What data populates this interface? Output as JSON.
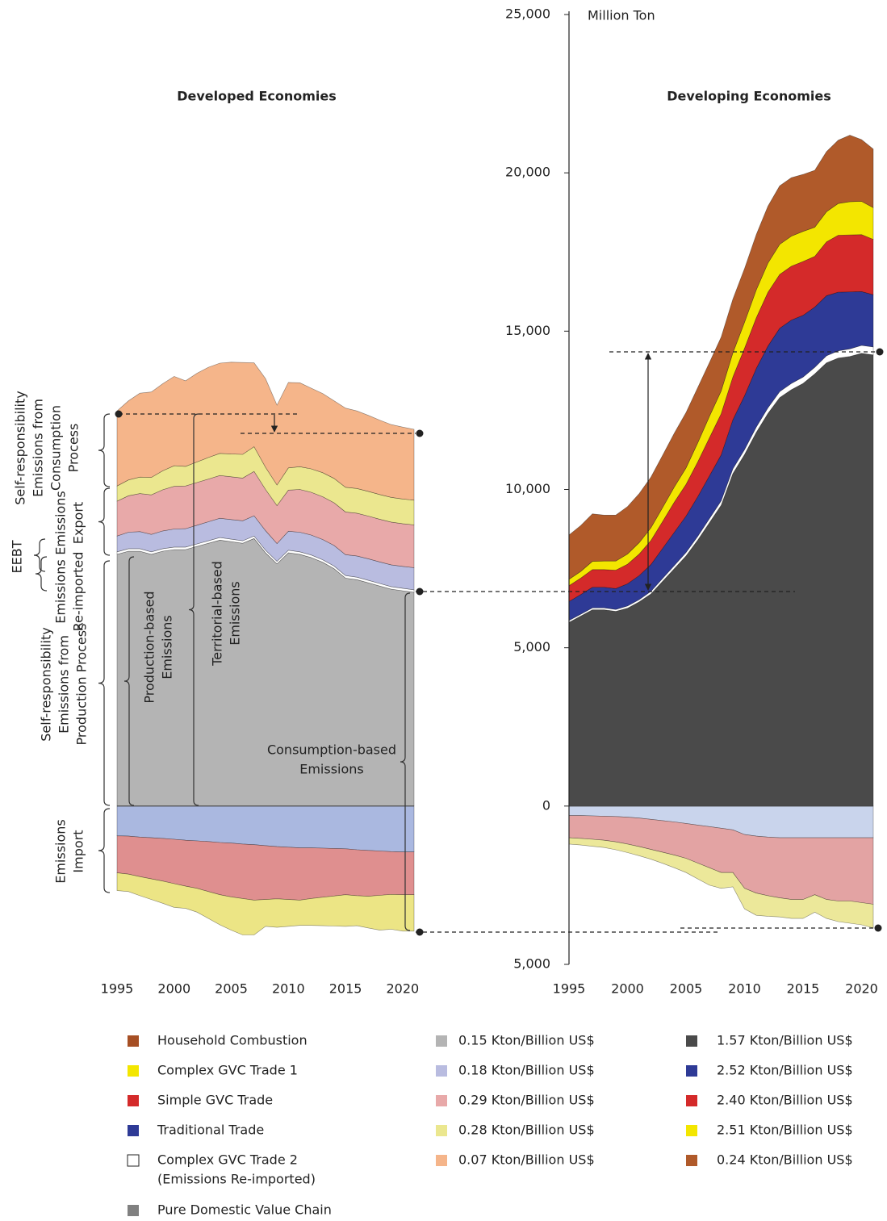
{
  "chart_data": [
    {
      "type": "area",
      "title": "Developed Economies",
      "x": [
        1995,
        1996,
        1997,
        1998,
        1999,
        2000,
        2001,
        2002,
        2003,
        2004,
        2005,
        2006,
        2007,
        2008,
        2009,
        2010,
        2011,
        2012,
        2013,
        2014,
        2015,
        2016,
        2017,
        2018,
        2019,
        2020,
        2021
      ],
      "xlim": [
        1995,
        2021
      ],
      "xticks": [
        1995,
        2000,
        2005,
        2010,
        2015,
        2020
      ],
      "ylim": [
        -5000,
        25000
      ],
      "series": [
        {
          "name": "0.15 Kton/Billion US$",
          "color": "#b4b4b4",
          "values": [
            7950,
            8050,
            8050,
            7950,
            8050,
            8100,
            8100,
            8200,
            8300,
            8400,
            8350,
            8300,
            8450,
            8000,
            7650,
            8000,
            7950,
            7850,
            7700,
            7500,
            7200,
            7150,
            7050,
            6950,
            6850,
            6800,
            6750
          ]
        },
        {
          "color": "#ffffff",
          "values": [
            80,
            80,
            80,
            80,
            80,
            80,
            80,
            80,
            80,
            80,
            80,
            80,
            80,
            80,
            80,
            80,
            80,
            80,
            80,
            80,
            80,
            80,
            80,
            80,
            80,
            80,
            80
          ]
        },
        {
          "name": "0.18 Kton/Billion US$",
          "color": "#b9bce0",
          "values": [
            500,
            520,
            540,
            550,
            560,
            570,
            580,
            590,
            600,
            610,
            620,
            630,
            640,
            620,
            560,
            600,
            620,
            630,
            640,
            650,
            660,
            670,
            680,
            680,
            690,
            690,
            700
          ]
        },
        {
          "name": "0.29 Kton/Billion US$",
          "color": "#e8a9a9",
          "values": [
            1100,
            1150,
            1200,
            1250,
            1300,
            1350,
            1350,
            1350,
            1350,
            1350,
            1350,
            1350,
            1400,
            1300,
            1200,
            1300,
            1350,
            1350,
            1350,
            1350,
            1350,
            1350,
            1350,
            1350,
            1350,
            1350,
            1350
          ]
        },
        {
          "name": "0.28 Kton/Billion US$",
          "color": "#ebe78f",
          "values": [
            480,
            500,
            520,
            550,
            600,
            650,
            620,
            650,
            680,
            700,
            720,
            750,
            780,
            700,
            650,
            700,
            720,
            740,
            760,
            770,
            780,
            780,
            780,
            780,
            780,
            780,
            780
          ]
        },
        {
          "name": "0.07 Kton/Billion US$",
          "color": "#f5b58a",
          "values": [
            2370,
            2500,
            2650,
            2700,
            2750,
            2820,
            2700,
            2800,
            2850,
            2850,
            2900,
            2900,
            2650,
            2800,
            2520,
            2700,
            2650,
            2550,
            2500,
            2450,
            2500,
            2450,
            2400,
            2350,
            2300,
            2270,
            2240
          ]
        }
      ],
      "import_series": [
        {
          "color": "#aab8e0",
          "values": [
            -940,
            -950,
            -980,
            -1000,
            -1020,
            -1050,
            -1080,
            -1100,
            -1120,
            -1150,
            -1170,
            -1200,
            -1220,
            -1250,
            -1280,
            -1300,
            -1320,
            -1320,
            -1330,
            -1340,
            -1350,
            -1380,
            -1400,
            -1420,
            -1440,
            -1450,
            -1450
          ]
        },
        {
          "color": "#df8f8f",
          "values": [
            -1170,
            -1200,
            -1250,
            -1300,
            -1350,
            -1400,
            -1450,
            -1500,
            -1580,
            -1650,
            -1700,
            -1720,
            -1750,
            -1700,
            -1650,
            -1650,
            -1650,
            -1600,
            -1550,
            -1500,
            -1450,
            -1450,
            -1450,
            -1400,
            -1350,
            -1350,
            -1350
          ]
        },
        {
          "color": "#ece585",
          "values": [
            -560,
            -550,
            -600,
            -650,
            -700,
            -750,
            -700,
            -750,
            -850,
            -950,
            -1050,
            -1150,
            -1100,
            -850,
            -900,
            -850,
            -800,
            -850,
            -900,
            -950,
            -1000,
            -950,
            -1000,
            -1100,
            -1100,
            -1150,
            -1150
          ]
        }
      ]
    },
    {
      "type": "area",
      "title": "Developing Economies",
      "y_label": "Million Ton",
      "x": [
        1995,
        1996,
        1997,
        1998,
        1999,
        2000,
        2001,
        2002,
        2003,
        2004,
        2005,
        2006,
        2007,
        2008,
        2009,
        2010,
        2011,
        2012,
        2013,
        2014,
        2015,
        2016,
        2017,
        2018,
        2019,
        2020,
        2021
      ],
      "xlim": [
        1995,
        2021
      ],
      "xticks": [
        1995,
        2000,
        2005,
        2010,
        2015,
        2020
      ],
      "ylim": [
        -5000,
        25000
      ],
      "yticks": [
        {
          "value": 25000,
          "label": "25,000"
        },
        {
          "value": 20000,
          "label": "20,000"
        },
        {
          "value": 15000,
          "label": "15,000"
        },
        {
          "value": 10000,
          "label": "10,000"
        },
        {
          "value": 5000,
          "label": "5,000"
        },
        0,
        {
          "value": -5000,
          "label": "5,000"
        }
      ],
      "series": [
        {
          "name": "1.57 Kton/Billion US$",
          "color": "#4a4a4a",
          "values": [
            5800,
            6000,
            6200,
            6200,
            6150,
            6250,
            6450,
            6700,
            7100,
            7500,
            7900,
            8400,
            8950,
            9500,
            10500,
            11100,
            11800,
            12400,
            12900,
            13150,
            13350,
            13650,
            14000,
            14150,
            14200,
            14300,
            14250
          ]
        },
        {
          "color": "#ffffff",
          "values": [
            60,
            60,
            60,
            60,
            60,
            70,
            70,
            80,
            90,
            100,
            110,
            120,
            130,
            140,
            150,
            160,
            170,
            180,
            190,
            200,
            200,
            210,
            220,
            230,
            240,
            250,
            250
          ]
        },
        {
          "name": "2.52 Kton/Billion US$",
          "color": "#2e3a96",
          "values": [
            600,
            620,
            650,
            650,
            660,
            700,
            760,
            850,
            950,
            1050,
            1150,
            1250,
            1350,
            1450,
            1550,
            1700,
            1850,
            1950,
            2000,
            2000,
            1950,
            1900,
            1900,
            1850,
            1800,
            1700,
            1650
          ]
        },
        {
          "name": "2.40 Kton/Billion US$",
          "color": "#d42a2a",
          "values": [
            500,
            520,
            560,
            560,
            580,
            620,
            680,
            760,
            850,
            950,
            1000,
            1100,
            1200,
            1300,
            1350,
            1500,
            1600,
            1700,
            1700,
            1700,
            1700,
            1600,
            1700,
            1800,
            1800,
            1800,
            1750
          ]
        },
        {
          "name": "2.51 Kton/Billion US$",
          "color": "#f3e600",
          "values": [
            200,
            210,
            260,
            270,
            290,
            320,
            360,
            400,
            440,
            480,
            520,
            600,
            680,
            720,
            760,
            820,
            880,
            920,
            950,
            950,
            950,
            920,
            950,
            1000,
            1050,
            1050,
            1000
          ]
        },
        {
          "name": "0.24 Kton/Billion US$",
          "color": "#b05a2a",
          "values": [
            1400,
            1450,
            1500,
            1450,
            1450,
            1500,
            1550,
            1600,
            1650,
            1700,
            1750,
            1750,
            1700,
            1700,
            1700,
            1700,
            1750,
            1800,
            1850,
            1850,
            1800,
            1800,
            1900,
            2000,
            2100,
            1950,
            1850
          ]
        }
      ],
      "import_series": [
        {
          "color": "#c9d4ec",
          "values": [
            -300,
            -300,
            -310,
            -320,
            -330,
            -350,
            -380,
            -420,
            -460,
            -500,
            -550,
            -600,
            -650,
            -700,
            -750,
            -900,
            -950,
            -980,
            -1000,
            -1000,
            -1000,
            -1000,
            -1000,
            -1000,
            -1000,
            -1000,
            -1000
          ]
        },
        {
          "color": "#e3a3a3",
          "values": [
            -700,
            -720,
            -740,
            -760,
            -800,
            -850,
            -900,
            -950,
            -1000,
            -1050,
            -1100,
            -1200,
            -1300,
            -1400,
            -1350,
            -1700,
            -1800,
            -1850,
            -1900,
            -1950,
            -1950,
            -1800,
            -1950,
            -2000,
            -2000,
            -2050,
            -2100
          ]
        },
        {
          "color": "#ece89a",
          "values": [
            -200,
            -210,
            -220,
            -230,
            -250,
            -270,
            -290,
            -310,
            -350,
            -400,
            -450,
            -500,
            -550,
            -500,
            -450,
            -650,
            -700,
            -650,
            -600,
            -600,
            -600,
            -550,
            -600,
            -650,
            -700,
            -700,
            -750
          ]
        }
      ]
    }
  ],
  "legend": [
    {
      "label": "Household Combustion",
      "color": "#a64f24"
    },
    {
      "label": "Complex GVC Trade 1",
      "color": "#f3e600"
    },
    {
      "label": "Simple GVC Trade",
      "color": "#d42a2a"
    },
    {
      "label": "Traditional Trade",
      "color": "#2e3a96"
    },
    {
      "label": [
        "Complex GVC Trade 2",
        "(Emissions Re-imported)"
      ],
      "color": "#ffffff"
    },
    {
      "label": "Pure Domestic Value Chain",
      "color": "#808080"
    }
  ],
  "annotations": {
    "consumption_self": [
      "Self-responsibility",
      "Emissions from",
      "Consumption",
      "Process"
    ],
    "export": [
      "Emissions",
      "Export"
    ],
    "eebt": [
      "EEBT"
    ],
    "reimported": [
      "Emissions",
      "Re-imported"
    ],
    "production_self": [
      "Self-responsibility",
      "Emissions from",
      "Production Process"
    ],
    "import": [
      "Emissions",
      "Import"
    ],
    "production_based": [
      "Production-based",
      "Emissions"
    ],
    "territorial_based": [
      "Territorial-based",
      "Emissions"
    ],
    "consumption_based": [
      "Consumption-based",
      "Emissions"
    ]
  }
}
